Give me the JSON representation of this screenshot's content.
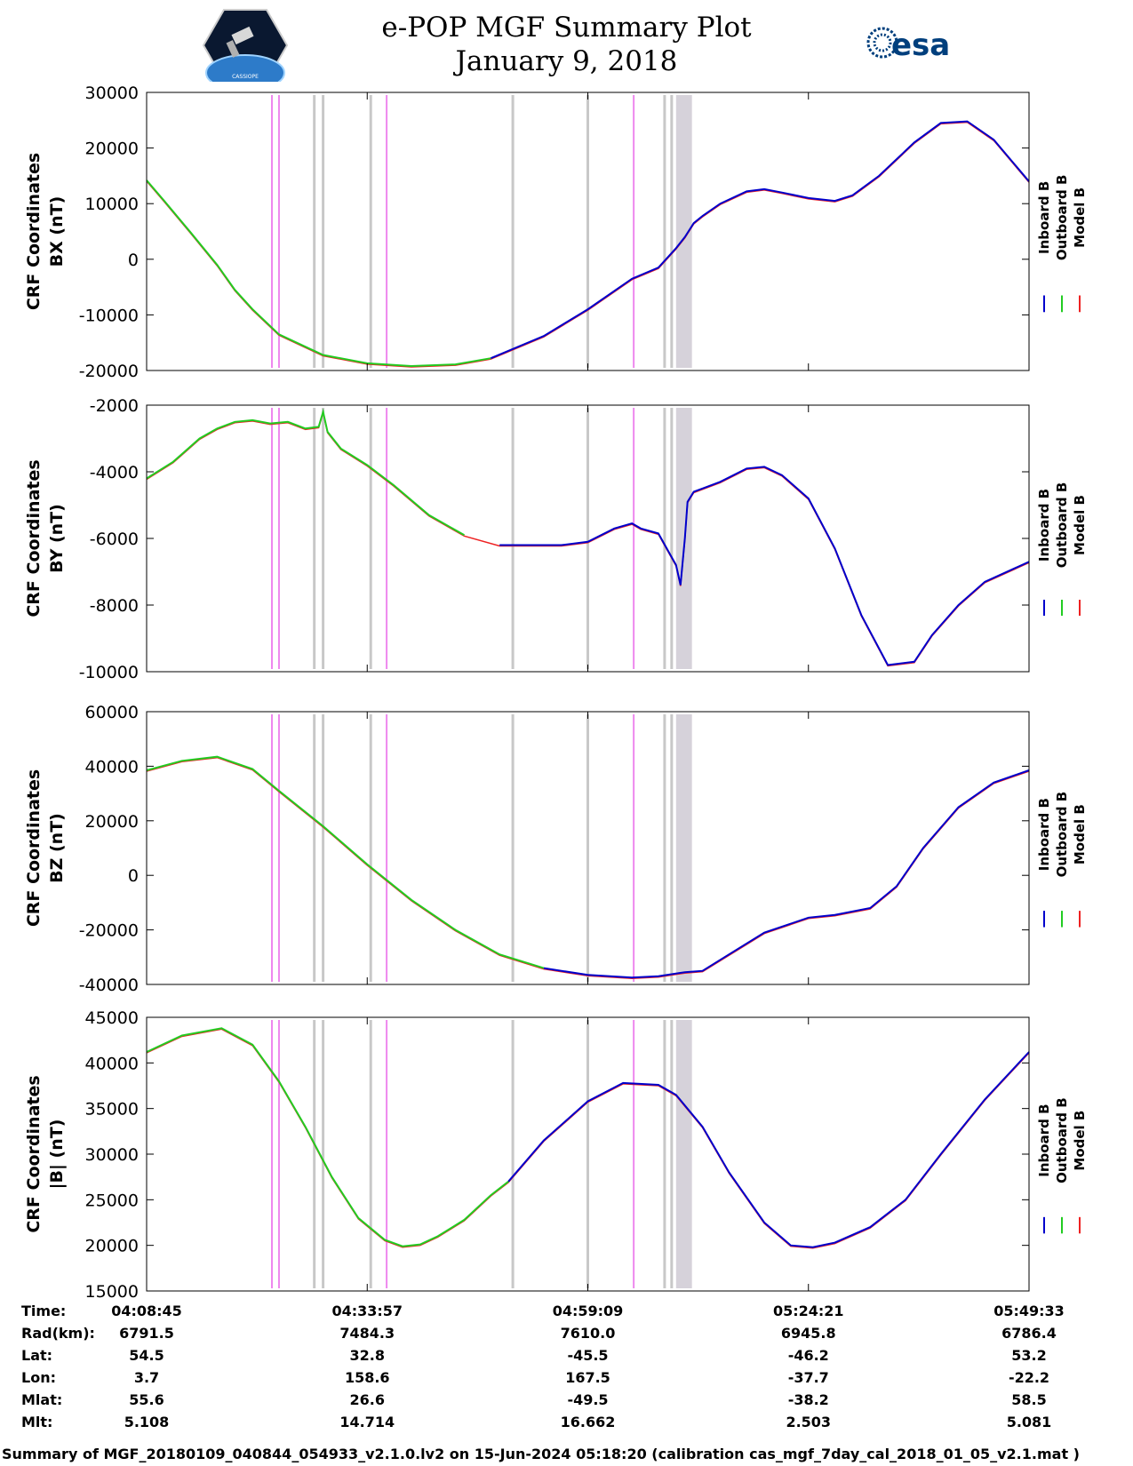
{
  "title": {
    "line1": "e-POP MGF Summary Plot",
    "line2": "January 9, 2018"
  },
  "logos": {
    "left": "cassiope-mission-logo",
    "right_text": "esa",
    "left_text": "CASSIOPE"
  },
  "colors": {
    "inboard": "#0000cc",
    "outboard": "#22cc22",
    "model": "#ee2222",
    "magenta_marker": "#ee88ee",
    "gray_marker": "#c8c8c8",
    "shade": "#d6d2da"
  },
  "chart_data": [
    {
      "type": "line",
      "ylabel_line1": "CRF Coordinates",
      "ylabel_line2": "BX (nT)",
      "ylim": [
        -20000,
        30000
      ],
      "yticks": [
        "30000",
        "20000",
        "10000",
        "0",
        "-10000",
        "-20000"
      ],
      "ytick_values": [
        30000,
        20000,
        10000,
        0,
        -10000,
        -20000
      ],
      "legend": [
        "Inboard B",
        "Outboard B",
        "Model B"
      ],
      "switch_x": 0.39,
      "x": [
        0,
        0.02,
        0.05,
        0.08,
        0.1,
        0.12,
        0.15,
        0.2,
        0.25,
        0.3,
        0.35,
        0.39,
        0.45,
        0.5,
        0.55,
        0.58,
        0.6,
        0.61,
        0.62,
        0.63,
        0.65,
        0.68,
        0.7,
        0.72,
        0.75,
        0.78,
        0.8,
        0.83,
        0.87,
        0.9,
        0.93,
        0.96,
        1.0
      ],
      "y": [
        14200,
        10500,
        4800,
        -1000,
        -5500,
        -9000,
        -13500,
        -17200,
        -18700,
        -19200,
        -18900,
        -17800,
        -13800,
        -9000,
        -3500,
        -1500,
        2000,
        4000,
        6500,
        7800,
        10000,
        12200,
        12600,
        12000,
        11000,
        10500,
        11500,
        15000,
        21000,
        24500,
        24800,
        21500,
        14000
      ]
    },
    {
      "type": "line",
      "ylabel_line1": "CRF Coordinates",
      "ylabel_line2": "BY (nT)",
      "ylim": [
        -10000,
        -2000
      ],
      "yticks": [
        "-2000",
        "-4000",
        "-6000",
        "-8000",
        "-10000"
      ],
      "ytick_values": [
        -2000,
        -4000,
        -6000,
        -8000,
        -10000
      ],
      "legend": [
        "Inboard B",
        "Outboard B",
        "Model B"
      ],
      "switch_x": 0.39,
      "x": [
        0,
        0.03,
        0.06,
        0.08,
        0.1,
        0.12,
        0.14,
        0.16,
        0.18,
        0.195,
        0.2,
        0.205,
        0.22,
        0.25,
        0.28,
        0.32,
        0.36,
        0.4,
        0.44,
        0.47,
        0.5,
        0.53,
        0.55,
        0.56,
        0.58,
        0.6,
        0.605,
        0.61,
        0.613,
        0.62,
        0.63,
        0.65,
        0.68,
        0.7,
        0.72,
        0.75,
        0.78,
        0.81,
        0.84,
        0.87,
        0.89,
        0.92,
        0.95,
        1.0
      ],
      "y": [
        -4200,
        -3700,
        -3000,
        -2700,
        -2500,
        -2450,
        -2550,
        -2500,
        -2700,
        -2650,
        -2200,
        -2800,
        -3300,
        -3800,
        -4400,
        -5300,
        -5900,
        -6200,
        -6200,
        -6200,
        -6100,
        -5700,
        -5550,
        -5700,
        -5850,
        -6800,
        -7400,
        -6000,
        -4900,
        -4600,
        -4500,
        -4300,
        -3900,
        -3850,
        -4100,
        -4800,
        -6300,
        -8300,
        -9800,
        -9700,
        -8900,
        -8000,
        -7300,
        -6700
      ]
    },
    {
      "type": "line",
      "ylabel_line1": "CRF Coordinates",
      "ylabel_line2": "BZ (nT)",
      "ylim": [
        -40000,
        60000
      ],
      "yticks": [
        "60000",
        "40000",
        "20000",
        "0",
        "-20000",
        "-40000"
      ],
      "ytick_values": [
        60000,
        40000,
        20000,
        0,
        -20000,
        -40000
      ],
      "legend": [
        "Inboard B",
        "Outboard B",
        "Model B"
      ],
      "switch_x": 0.45,
      "x": [
        0,
        0.04,
        0.08,
        0.12,
        0.15,
        0.2,
        0.25,
        0.3,
        0.35,
        0.4,
        0.45,
        0.5,
        0.55,
        0.58,
        0.61,
        0.63,
        0.66,
        0.7,
        0.75,
        0.78,
        0.82,
        0.85,
        0.88,
        0.92,
        0.96,
        1.0
      ],
      "y": [
        38500,
        42000,
        43500,
        39000,
        31000,
        18000,
        4000,
        -9000,
        -20000,
        -29000,
        -34000,
        -36500,
        -37500,
        -37000,
        -35500,
        -35000,
        -29000,
        -21000,
        -15500,
        -14500,
        -12000,
        -4000,
        10000,
        25000,
        34000,
        38500
      ]
    },
    {
      "type": "line",
      "ylabel_line1": "CRF Coordinates",
      "ylabel_line2": "|B| (nT)",
      "ylim": [
        15000,
        45000
      ],
      "yticks": [
        "45000",
        "40000",
        "35000",
        "30000",
        "25000",
        "20000",
        "15000"
      ],
      "ytick_values": [
        45000,
        40000,
        35000,
        30000,
        25000,
        20000,
        15000
      ],
      "legend": [
        "Inboard B",
        "Outboard B",
        "Model B"
      ],
      "switch_x": 0.41,
      "x": [
        0,
        0.04,
        0.085,
        0.12,
        0.15,
        0.18,
        0.21,
        0.24,
        0.27,
        0.29,
        0.31,
        0.33,
        0.36,
        0.39,
        0.41,
        0.45,
        0.5,
        0.54,
        0.58,
        0.6,
        0.63,
        0.66,
        0.7,
        0.73,
        0.755,
        0.78,
        0.82,
        0.86,
        0.9,
        0.95,
        1.0
      ],
      "y": [
        41200,
        43000,
        43800,
        42000,
        38000,
        33000,
        27500,
        23000,
        20600,
        19900,
        20100,
        21000,
        22800,
        25500,
        27000,
        31500,
        35800,
        37800,
        37600,
        36500,
        33000,
        28000,
        22500,
        20000,
        19800,
        20300,
        22000,
        25000,
        30000,
        36000,
        41200
      ]
    }
  ],
  "markers": {
    "magenta_x": [
      0.142,
      0.15,
      0.272,
      0.552
    ],
    "gray_x": [
      0.19,
      0.2,
      0.254,
      0.415,
      0.5,
      0.587,
      0.595
    ],
    "shade_x": [
      0.6,
      0.618
    ]
  },
  "info": {
    "labels": [
      "Time:",
      "Rad(km):",
      "Lat:",
      "Lon:",
      "Mlat:",
      "Mlt:"
    ],
    "columns": [
      [
        "04:08:45",
        "6791.5",
        "54.5",
        "3.7",
        "55.6",
        "5.108"
      ],
      [
        "04:33:57",
        "7484.3",
        "32.8",
        "158.6",
        "26.6",
        "14.714"
      ],
      [
        "04:59:09",
        "7610.0",
        "-45.5",
        "167.5",
        "-49.5",
        "16.662"
      ],
      [
        "05:24:21",
        "6945.8",
        "-46.2",
        "-37.7",
        "-38.2",
        "2.503"
      ],
      [
        "05:49:33",
        "6786.4",
        "53.2",
        "-22.2",
        "58.5",
        "5.081"
      ]
    ]
  },
  "footer": "Summary of MGF_20180109_040844_054933_v2.1.0.lv2 on 15-Jun-2024 05:18:20 (calibration cas_mgf_7day_cal_2018_01_05_v2.1.mat )"
}
